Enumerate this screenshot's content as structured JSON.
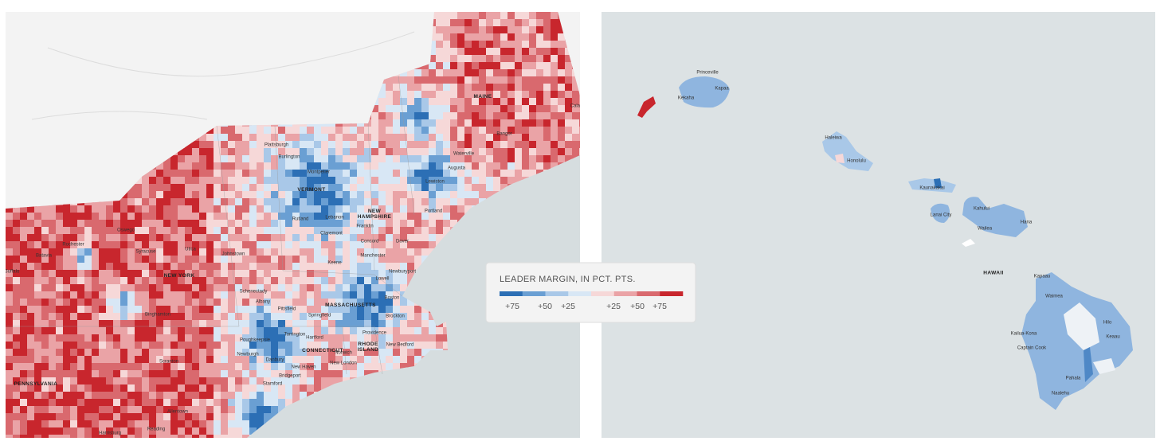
{
  "legend": {
    "title": "LEADER MARGIN, IN PCT. PTS.",
    "swatches": [
      "#2c6fb5",
      "#6a9fd3",
      "#a9c8e8",
      "#d8e7f5",
      "#f6d8d8",
      "#eaa3a6",
      "#d9696e",
      "#c8262d"
    ],
    "labels": [
      "+75",
      "+50",
      "+25",
      "+25",
      "+50",
      "+75"
    ]
  },
  "northeast_map": {
    "state_labels": [
      {
        "lines": [
          "MAINE"
        ]
      },
      {
        "lines": [
          "VERMONT"
        ]
      },
      {
        "lines": [
          "NEW",
          "HAMPSHIRE"
        ]
      },
      {
        "lines": [
          "NEW YORK"
        ]
      },
      {
        "lines": [
          "MASSACHUSETTS"
        ]
      },
      {
        "lines": [
          "CONNECTICUT"
        ]
      },
      {
        "lines": [
          "RHODE",
          "ISLAND"
        ]
      },
      {
        "lines": [
          "PENNSYLVANIA"
        ]
      }
    ],
    "city_labels": [
      "Plattsburgh",
      "Burlington",
      "Montpelier",
      "Rutland",
      "Lebanon",
      "Claremont",
      "Franklin",
      "Concord",
      "Manchester",
      "Keene",
      "Dover",
      "Portland",
      "Lewiston",
      "Augusta",
      "Waterville",
      "Bangor",
      "Calais",
      "Lowell",
      "Newburyport",
      "Boston",
      "Brockton",
      "Springfield",
      "Pittsfield",
      "Providence",
      "New Bedford",
      "Norwich",
      "Hartford",
      "Torrington",
      "New London",
      "New Haven",
      "Bridgeport",
      "Stamford",
      "Danbury",
      "Newburgh",
      "Poughkeepsie",
      "Albany",
      "Schenectady",
      "Utica",
      "Syracuse",
      "Rochester",
      "Buffalo",
      "Batavia",
      "Johnstown",
      "Oswego",
      "Binghamton",
      "Scranton",
      "Allentown",
      "Reading",
      "Harrisburg"
    ]
  },
  "hawaii_map": {
    "state_label": "HAWAII",
    "city_labels": [
      "Princeville",
      "Kapaa",
      "Kekaha",
      "Haleiwa",
      "Honolulu",
      "Kaunakakai",
      "Lanai City",
      "Kahului",
      "Hana",
      "Wailea",
      "Kapaau",
      "Waimea",
      "Hilo",
      "Keaau",
      "Kailua-Kona",
      "Captain Cook",
      "Pahala",
      "Naalehu"
    ]
  }
}
